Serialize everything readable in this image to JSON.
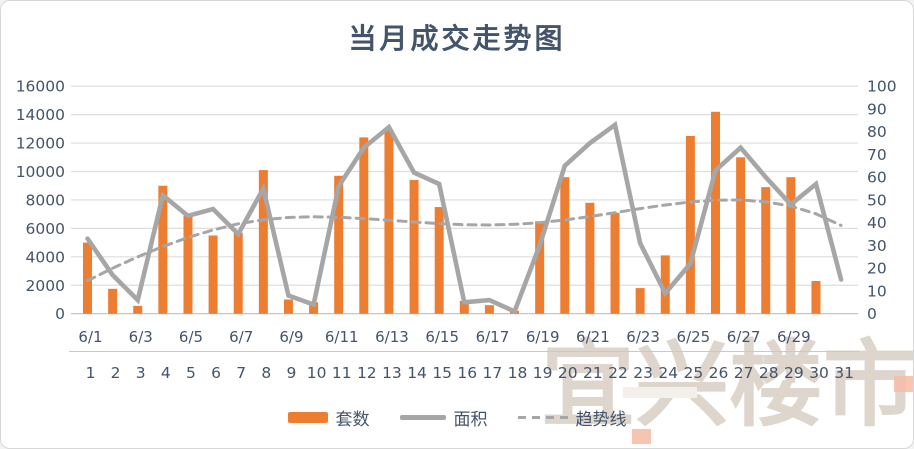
{
  "title": "当月成交走势图",
  "watermark": {
    "text": "宜兴楼市"
  },
  "legend": {
    "items": [
      {
        "label": "套数",
        "swatch": "bar-swatch"
      },
      {
        "label": "面积",
        "swatch": "line-swatch"
      },
      {
        "label": "趋势线",
        "swatch": "dashed-line-swatch"
      }
    ]
  },
  "colors": {
    "bar": "#ED7D31",
    "line": "#A6A6A6",
    "trend": "#A6A6A6",
    "axis_text": "#44546A",
    "grid": "#DEDEDE",
    "axis_line": "#BFBFBF",
    "divider": "#C9C9C9",
    "background": "#FFFFFF",
    "watermark": "#D9CFC4"
  },
  "chart_data": {
    "type": "combo-bar-line",
    "title": "当月成交走势图",
    "x_date_labels": [
      "6/1",
      "6/3",
      "6/5",
      "6/7",
      "6/9",
      "6/11",
      "6/13",
      "6/15",
      "6/17",
      "6/19",
      "6/21",
      "6/23",
      "6/25",
      "6/27",
      "6/29"
    ],
    "x_date_label_days": [
      1,
      3,
      5,
      7,
      9,
      11,
      13,
      15,
      17,
      19,
      21,
      23,
      25,
      27,
      29
    ],
    "x_day_labels": [
      "1",
      "2",
      "3",
      "4",
      "5",
      "6",
      "7",
      "8",
      "9",
      "10",
      "11",
      "12",
      "13",
      "14",
      "15",
      "16",
      "17",
      "18",
      "19",
      "20",
      "21",
      "22",
      "23",
      "24",
      "25",
      "26",
      "27",
      "28",
      "29",
      "30",
      "31"
    ],
    "left_axis": {
      "min": 0,
      "max": 16000,
      "step": 2000,
      "ticks": [
        0,
        2000,
        4000,
        6000,
        8000,
        10000,
        12000,
        14000,
        16000
      ]
    },
    "right_axis": {
      "min": 0,
      "max": 100,
      "step": 10,
      "ticks": [
        0,
        10,
        20,
        30,
        40,
        50,
        60,
        70,
        80,
        90,
        100
      ]
    },
    "grid": true,
    "legend_position": "bottom",
    "series": [
      {
        "name": "套数",
        "type": "bar",
        "axis": "left",
        "values": [
          5000,
          1750,
          550,
          9000,
          6900,
          5500,
          5700,
          10100,
          1000,
          800,
          9700,
          12400,
          12900,
          9400,
          7500,
          900,
          600,
          200,
          6500,
          9600,
          7800,
          7100,
          1800,
          4100,
          12500,
          14200,
          11000,
          8900,
          9600,
          2300,
          null
        ]
      },
      {
        "name": "面积",
        "type": "line",
        "axis": "right",
        "values": [
          33,
          17,
          6,
          52,
          43,
          46,
          35,
          55,
          8,
          4,
          56,
          73,
          82,
          62,
          57,
          5,
          6,
          1,
          30,
          65,
          75,
          83,
          31,
          9,
          22,
          63,
          73,
          60,
          48,
          57,
          15
        ]
      },
      {
        "name": "趋势线",
        "type": "dashed-trend",
        "axis": "right",
        "values": [
          14.5,
          20,
          25,
          29.5,
          33.5,
          36.8,
          39.5,
          41.3,
          42.3,
          42.6,
          42.4,
          41.8,
          41.1,
          40.3,
          39.6,
          39.1,
          39,
          39.3,
          40,
          41.2,
          42.7,
          44.4,
          46.2,
          47.8,
          49.1,
          49.9,
          50,
          49.2,
          47.3,
          43.9,
          38.8
        ]
      }
    ]
  }
}
